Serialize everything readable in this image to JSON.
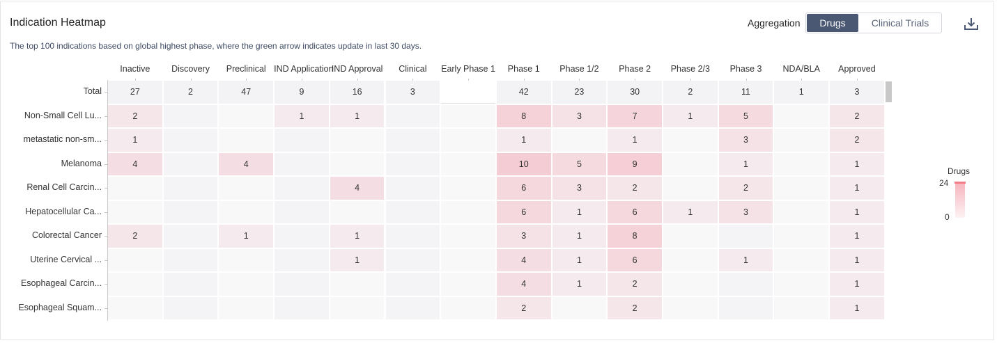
{
  "header": {
    "title": "Indication Heatmap",
    "subtitle": "The top 100 indications based on global highest phase, where the green arrow indicates update in last 30 days.",
    "aggregation_label": "Aggregation",
    "options": [
      "Drugs",
      "Clinical Trials"
    ],
    "selected": "Drugs",
    "download_icon": "download-icon"
  },
  "legend": {
    "title": "Drugs",
    "max": "24",
    "min": "0"
  },
  "colors": {
    "accent": "#4a5873",
    "heat_high": "#f6b3bb",
    "heat_low": "#fdf2f4"
  },
  "chart_data": {
    "type": "heatmap",
    "title": "Indication Heatmap",
    "columns": [
      "Inactive",
      "Discovery",
      "Preclinical",
      "IND Application",
      "IND Approval",
      "Clinical",
      "Early Phase 1",
      "Phase 1",
      "Phase 1/2",
      "Phase 2",
      "Phase 2/3",
      "Phase 3",
      "NDA/BLA",
      "Approved"
    ],
    "rows": [
      {
        "label": "Total",
        "values": [
          27,
          2,
          47,
          9,
          16,
          3,
          null,
          42,
          23,
          30,
          2,
          11,
          1,
          3
        ]
      },
      {
        "label": "Non-Small Cell Lu...",
        "values": [
          2,
          null,
          null,
          1,
          1,
          null,
          null,
          8,
          3,
          7,
          1,
          5,
          null,
          2
        ]
      },
      {
        "label": "metastatic non-sm...",
        "values": [
          1,
          null,
          null,
          null,
          null,
          null,
          null,
          1,
          null,
          1,
          null,
          3,
          null,
          2
        ]
      },
      {
        "label": "Melanoma",
        "values": [
          4,
          null,
          4,
          null,
          null,
          null,
          null,
          10,
          5,
          9,
          null,
          1,
          null,
          1
        ]
      },
      {
        "label": "Renal Cell Carcin...",
        "values": [
          null,
          null,
          null,
          null,
          4,
          null,
          null,
          6,
          3,
          2,
          null,
          2,
          null,
          1
        ]
      },
      {
        "label": "Hepatocellular Ca...",
        "values": [
          null,
          null,
          null,
          null,
          null,
          null,
          null,
          6,
          1,
          6,
          1,
          3,
          null,
          1
        ]
      },
      {
        "label": "Colorectal Cancer",
        "values": [
          2,
          null,
          1,
          null,
          1,
          null,
          null,
          3,
          1,
          8,
          null,
          null,
          null,
          1
        ]
      },
      {
        "label": "Uterine Cervical ...",
        "values": [
          null,
          null,
          null,
          null,
          1,
          null,
          null,
          4,
          1,
          6,
          null,
          1,
          null,
          1
        ]
      },
      {
        "label": "Esophageal Carcin...",
        "values": [
          null,
          null,
          null,
          null,
          null,
          null,
          null,
          4,
          1,
          2,
          null,
          null,
          null,
          1
        ]
      },
      {
        "label": "Esophageal Squam...",
        "values": [
          null,
          null,
          null,
          null,
          null,
          null,
          null,
          2,
          null,
          2,
          null,
          null,
          null,
          1
        ]
      }
    ],
    "color_scale": {
      "min": 0,
      "max": 24
    }
  }
}
